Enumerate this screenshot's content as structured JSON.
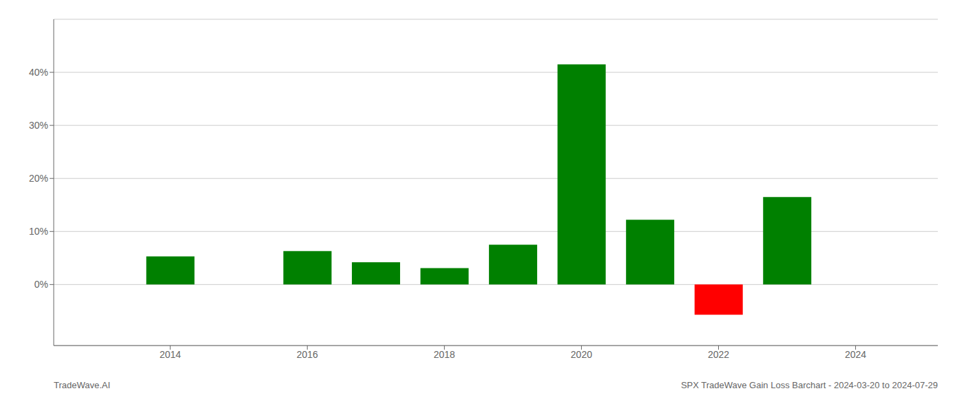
{
  "chart_data": {
    "type": "bar",
    "x": [
      2014,
      2016,
      2017,
      2018,
      2019,
      2020,
      2021,
      2022,
      2023
    ],
    "values": [
      0.053,
      0.063,
      0.042,
      0.031,
      0.075,
      0.415,
      0.122,
      -0.057,
      0.165
    ],
    "colors": [
      "#008000",
      "#008000",
      "#008000",
      "#008000",
      "#008000",
      "#008000",
      "#008000",
      "#ff0000",
      "#008000"
    ],
    "xlim": [
      2012.3,
      2025.2
    ],
    "ylim": [
      -0.115,
      0.5
    ],
    "xticks": [
      2014,
      2016,
      2018,
      2020,
      2022,
      2024
    ],
    "yticks": [
      {
        "value": 0.0,
        "label": "0%"
      },
      {
        "value": 0.1,
        "label": "10%"
      },
      {
        "value": 0.2,
        "label": "20%"
      },
      {
        "value": 0.3,
        "label": "30%"
      },
      {
        "value": 0.4,
        "label": "40%"
      }
    ],
    "grid": true,
    "annotations": [
      "TradeWave.AI",
      "SPX TradeWave Gain Loss Barchart - 2024-03-20 to 2024-07-29"
    ]
  }
}
